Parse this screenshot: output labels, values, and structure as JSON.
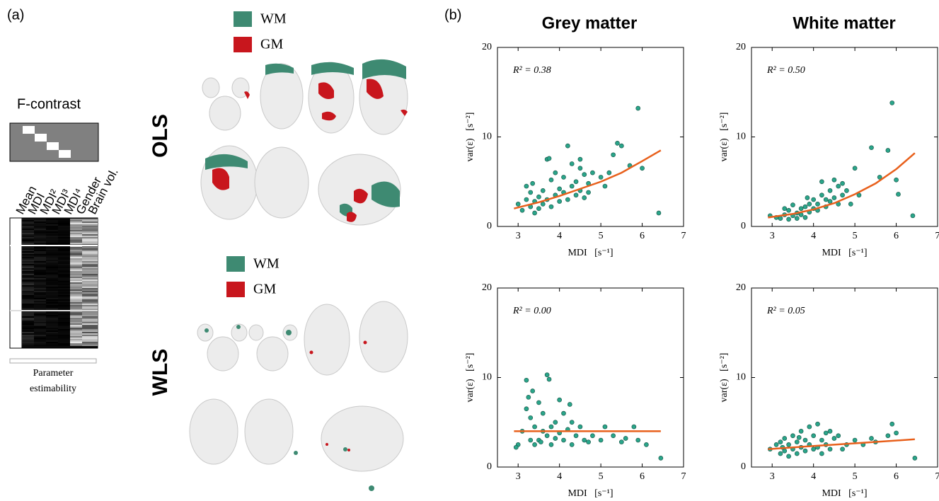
{
  "panel_a": {
    "label": "(a)",
    "contrast_title": "F-contrast",
    "columns": [
      "Mean",
      "MDI",
      "MDI²",
      "MDI³",
      "MDI⁴",
      "Gender",
      "Brain vol."
    ],
    "estimability": [
      "Parameter",
      "estimability"
    ]
  },
  "brains": {
    "ols": "OLS",
    "wls": "WLS",
    "legend": [
      {
        "name": "WM",
        "color": "#3e8a72"
      },
      {
        "name": "GM",
        "color": "#c8161d"
      }
    ]
  },
  "panel_b": {
    "label": "(b)",
    "column_titles": [
      "Grey matter",
      "White matter"
    ]
  },
  "chart_data": [
    {
      "type": "scatter",
      "annotation": "R² = 0.38",
      "xlabel": "MDI   [s⁻¹]",
      "ylabel": "var(ε)   [s⁻²]",
      "xlim": [
        2.5,
        7
      ],
      "ylim": [
        0,
        20
      ],
      "xticks": [
        3,
        4,
        5,
        6,
        7
      ],
      "yticks": [
        0,
        10,
        20
      ],
      "point_color": "#2aa58a",
      "fit_color": "#e8601c",
      "x": [
        3.0,
        3.1,
        3.2,
        3.2,
        3.3,
        3.3,
        3.4,
        3.4,
        3.5,
        3.5,
        3.6,
        3.6,
        3.7,
        3.7,
        3.8,
        3.8,
        3.9,
        3.9,
        4.0,
        4.0,
        4.1,
        4.1,
        4.2,
        4.2,
        4.3,
        4.3,
        4.4,
        4.4,
        4.5,
        4.5,
        4.6,
        4.6,
        4.7,
        4.7,
        4.8,
        5.0,
        5.1,
        5.2,
        5.3,
        5.4,
        5.5,
        5.7,
        5.9,
        6.0,
        6.4,
        3.75,
        4.5,
        3.35
      ],
      "y": [
        2.5,
        1.8,
        3.0,
        4.5,
        2.2,
        3.8,
        1.5,
        2.8,
        3.3,
        2.0,
        4.0,
        2.5,
        7.5,
        3.0,
        5.2,
        2.2,
        3.5,
        6.0,
        4.2,
        2.8,
        3.8,
        5.5,
        9.0,
        3.0,
        4.5,
        7.0,
        3.5,
        5.0,
        4.0,
        6.5,
        3.2,
        5.8,
        4.8,
        3.8,
        6.0,
        5.5,
        4.5,
        6.0,
        8.0,
        9.3,
        9.0,
        6.8,
        13.2,
        6.5,
        1.5,
        7.6,
        7.5,
        4.8
      ],
      "fit_x": [
        2.9,
        3.5,
        4,
        4.5,
        5,
        5.5,
        6,
        6.45
      ],
      "fit_y": [
        2.0,
        2.7,
        3.4,
        4.2,
        5.0,
        6.0,
        7.3,
        8.5
      ]
    },
    {
      "type": "scatter",
      "annotation": "R² = 0.50",
      "xlabel": "MDI   [s⁻¹]",
      "ylabel": "var(ε)   [s⁻²]",
      "xlim": [
        2.5,
        7
      ],
      "ylim": [
        0,
        20
      ],
      "xticks": [
        3,
        4,
        5,
        6,
        7
      ],
      "yticks": [
        0,
        10,
        20
      ],
      "point_color": "#2aa58a",
      "fit_color": "#e8601c",
      "x": [
        2.95,
        3.1,
        3.2,
        3.3,
        3.4,
        3.4,
        3.5,
        3.6,
        3.6,
        3.7,
        3.7,
        3.8,
        3.8,
        3.9,
        3.9,
        4.0,
        4.0,
        4.1,
        4.1,
        4.2,
        4.2,
        4.3,
        4.3,
        4.4,
        4.4,
        4.5,
        4.5,
        4.6,
        4.6,
        4.7,
        4.7,
        4.8,
        4.9,
        5.0,
        5.1,
        5.4,
        5.6,
        5.8,
        5.9,
        6.0,
        6.05,
        6.4,
        3.3,
        3.5,
        3.85
      ],
      "y": [
        1.2,
        1.0,
        0.9,
        1.3,
        0.8,
        1.8,
        1.2,
        1.5,
        0.9,
        2.0,
        1.3,
        2.2,
        1.0,
        2.5,
        1.6,
        2.0,
        3.0,
        2.5,
        1.8,
        3.5,
        5.0,
        3.0,
        2.2,
        4.0,
        2.8,
        3.2,
        5.2,
        4.5,
        2.5,
        3.5,
        4.8,
        4.0,
        2.5,
        6.5,
        3.5,
        8.8,
        5.5,
        8.5,
        13.8,
        5.2,
        3.6,
        1.2,
        2.0,
        2.4,
        3.2
      ],
      "fit_x": [
        2.9,
        3.5,
        4,
        4.5,
        5,
        5.5,
        6,
        6.45
      ],
      "fit_y": [
        1.0,
        1.4,
        1.9,
        2.6,
        3.6,
        4.8,
        6.4,
        8.2
      ]
    },
    {
      "type": "scatter",
      "annotation": "R² = 0.00",
      "xlabel": "MDI   [s⁻¹]",
      "ylabel": "var(ε)   [s⁻²]",
      "xlim": [
        2.5,
        7
      ],
      "ylim": [
        0,
        20
      ],
      "xticks": [
        3,
        4,
        5,
        6,
        7
      ],
      "yticks": [
        0,
        10,
        20
      ],
      "point_color": "#2aa58a",
      "fit_color": "#e8601c",
      "x": [
        3.0,
        3.1,
        3.2,
        3.2,
        3.25,
        3.3,
        3.3,
        3.4,
        3.4,
        3.5,
        3.5,
        3.55,
        3.6,
        3.6,
        3.7,
        3.7,
        3.75,
        3.8,
        3.8,
        3.9,
        3.9,
        4.0,
        4.0,
        4.1,
        4.1,
        4.2,
        4.3,
        4.3,
        4.4,
        4.5,
        4.6,
        4.7,
        4.8,
        5.0,
        5.1,
        5.3,
        5.5,
        5.6,
        5.8,
        5.9,
        6.1,
        6.45,
        2.95,
        3.35,
        4.25
      ],
      "y": [
        2.5,
        4.0,
        9.7,
        6.5,
        7.8,
        3.0,
        5.5,
        2.5,
        4.5,
        3.0,
        7.2,
        2.8,
        4.0,
        6.0,
        10.3,
        3.5,
        9.8,
        4.5,
        2.5,
        3.2,
        5.0,
        3.8,
        7.5,
        3.0,
        6.0,
        4.2,
        2.5,
        5.0,
        3.5,
        4.5,
        3.0,
        2.8,
        3.5,
        3.0,
        4.5,
        3.5,
        2.8,
        3.2,
        4.5,
        3.0,
        2.5,
        1.0,
        2.2,
        8.5,
        7.0
      ],
      "fit_x": [
        2.9,
        6.45
      ],
      "fit_y": [
        4.0,
        4.0
      ]
    },
    {
      "type": "scatter",
      "annotation": "R² = 0.05",
      "xlabel": "MDI   [s⁻¹]",
      "ylabel": "var(ε)   [s⁻²]",
      "xlim": [
        2.5,
        7
      ],
      "ylim": [
        0,
        20
      ],
      "xticks": [
        3,
        4,
        5,
        6,
        7
      ],
      "yticks": [
        0,
        10,
        20
      ],
      "point_color": "#2aa58a",
      "fit_color": "#e8601c",
      "x": [
        2.95,
        3.1,
        3.2,
        3.2,
        3.3,
        3.3,
        3.4,
        3.4,
        3.5,
        3.5,
        3.6,
        3.6,
        3.7,
        3.7,
        3.8,
        3.8,
        3.9,
        3.9,
        4.0,
        4.0,
        4.1,
        4.1,
        4.2,
        4.2,
        4.3,
        4.3,
        4.4,
        4.4,
        4.5,
        4.6,
        4.7,
        4.8,
        5.0,
        5.2,
        5.4,
        5.5,
        5.8,
        5.9,
        6.0,
        6.45,
        3.25,
        3.65
      ],
      "y": [
        2.0,
        2.5,
        1.5,
        2.8,
        1.8,
        3.2,
        1.2,
        2.5,
        2.0,
        3.5,
        1.5,
        2.8,
        2.2,
        4.0,
        1.8,
        3.0,
        2.5,
        4.5,
        2.0,
        3.5,
        4.8,
        2.2,
        3.0,
        1.5,
        3.8,
        2.5,
        4.0,
        2.0,
        3.2,
        3.5,
        2.0,
        2.5,
        3.0,
        2.5,
        3.2,
        2.8,
        3.5,
        4.8,
        3.8,
        1.0,
        2.2,
        3.3
      ],
      "fit_x": [
        2.9,
        4,
        5,
        6.45
      ],
      "fit_y": [
        2.0,
        2.35,
        2.65,
        3.1
      ]
    }
  ]
}
